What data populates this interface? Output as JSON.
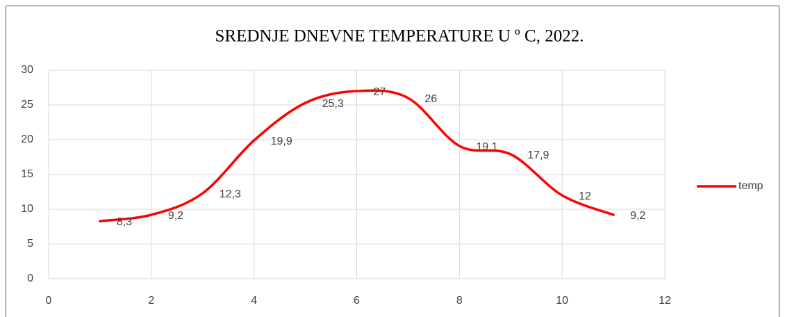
{
  "chart_data": {
    "type": "line",
    "title": "SREDNJE DNEVNE TEMPERATURE U º C, 2022.",
    "x": [
      1,
      2,
      3,
      4,
      5,
      6,
      7,
      8,
      9,
      10,
      11
    ],
    "series": [
      {
        "name": "temp",
        "color": "#ff0000",
        "values": [
          8.3,
          9.2,
          12.3,
          19.9,
          25.3,
          27,
          26,
          19.1,
          17.9,
          12,
          9.2
        ],
        "value_labels": [
          "8,3",
          "9,2",
          "12,3",
          "19,9",
          "25,3",
          "27",
          "26",
          "19,1",
          "17,9",
          "12",
          "9,2"
        ]
      }
    ],
    "xlim": [
      0,
      12
    ],
    "xticks": [
      0,
      2,
      4,
      6,
      8,
      10,
      12
    ],
    "ylim": [
      0,
      30
    ],
    "yticks": [
      0,
      5,
      10,
      15,
      20,
      25,
      30
    ],
    "grid": true,
    "smooth": true,
    "legend": "right"
  }
}
